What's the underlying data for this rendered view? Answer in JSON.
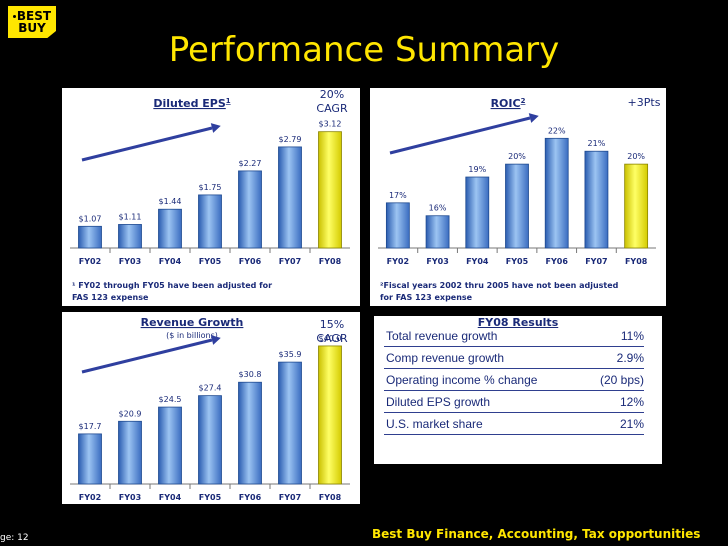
{
  "logo": {
    "line1": "BEST",
    "line2": "BUY"
  },
  "title": "Performance Summary",
  "footer": "Best Buy Finance, Accounting, Tax opportunities",
  "page_label": "ge: 12",
  "chart_data": [
    {
      "type": "bar",
      "title": "Diluted EPS",
      "title_sup": "1",
      "callout": [
        "20%",
        "CAGR"
      ],
      "categories": [
        "FY02",
        "FY03",
        "FY04",
        "FY05",
        "FY06",
        "FY07",
        "FY08"
      ],
      "values": [
        1.07,
        1.11,
        1.44,
        1.75,
        2.27,
        2.79,
        3.12
      ],
      "labels": [
        "$1.07",
        "$1.11",
        "$1.44",
        "$1.75",
        "$2.27",
        "$2.79",
        "$3.12"
      ],
      "ylim": [
        0.6,
        3.2
      ],
      "highlight_color": "#f5f000",
      "bar_color": "#5b8fd8",
      "footnote": [
        "¹ FY02 through FY05 have been adjusted for",
        "FAS 123 expense"
      ]
    },
    {
      "type": "bar",
      "title": "ROIC",
      "title_sup": "2",
      "callout": [
        "+3Pts"
      ],
      "categories": [
        "FY02",
        "FY03",
        "FY04",
        "FY05",
        "FY06",
        "FY07",
        "FY08"
      ],
      "values": [
        17,
        16,
        19,
        20,
        22,
        21,
        20
      ],
      "labels": [
        "17%",
        "16%",
        "19%",
        "20%",
        "22%",
        "21%",
        "20%"
      ],
      "ylim": [
        13.5,
        22.8
      ],
      "highlight_color": "#f5f000",
      "bar_color": "#5b8fd8",
      "footnote": [
        "²Fiscal years 2002 thru 2005 have not been adjusted",
        "for FAS 123 expense"
      ]
    },
    {
      "type": "bar",
      "title": "Revenue Growth",
      "subtitle": "($ in billions)",
      "callout": [
        "15%",
        "CAGR"
      ],
      "categories": [
        "FY02",
        "FY03",
        "FY04",
        "FY05",
        "FY06",
        "FY07",
        "FY08"
      ],
      "values": [
        17.7,
        20.9,
        24.5,
        27.4,
        30.8,
        35.9,
        40.0
      ],
      "labels": [
        "$17.7",
        "$20.9",
        "$24.5",
        "$27.4",
        "$30.8",
        "$35.9",
        "$40.0"
      ],
      "ylim": [
        5,
        41
      ],
      "highlight_color": "#f5f000",
      "bar_color": "#5b8fd8"
    }
  ],
  "results": {
    "title": "FY08 Results",
    "rows": [
      {
        "label": "Total revenue growth",
        "value": "11%"
      },
      {
        "label": "Comp revenue growth",
        "value": "2.9%"
      },
      {
        "label": "Operating income % change",
        "value": "(20 bps)"
      },
      {
        "label": "Diluted EPS growth",
        "value": "12%"
      },
      {
        "label": "U.S. market share",
        "value": "21%"
      }
    ]
  }
}
